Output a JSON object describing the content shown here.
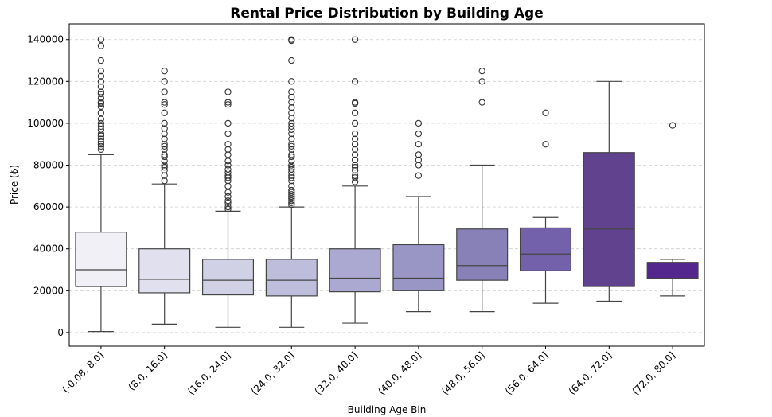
{
  "chart_data": {
    "type": "box",
    "title": "Rental Price Distribution by Building Age",
    "xlabel": "Building Age Bin",
    "ylabel": "Price (₺)",
    "ylim": [
      -6500,
      147500
    ],
    "yticks": [
      0,
      20000,
      40000,
      60000,
      80000,
      100000,
      120000,
      140000
    ],
    "ytick_labels": [
      "0",
      "20000",
      "40000",
      "60000",
      "80000",
      "100000",
      "120000",
      "140000"
    ],
    "grid": "horizontal-dashed",
    "categories": [
      "(-0.08, 8.0]",
      "(8.0, 16.0]",
      "(16.0, 24.0]",
      "(24.0, 32.0]",
      "(32.0, 40.0]",
      "(40.0, 48.0]",
      "(48.0, 56.0]",
      "(56.0, 64.0]",
      "(64.0, 72.0]",
      "(72.0, 80.0]"
    ],
    "colors": [
      "#f1f0f6",
      "#e1e0ee",
      "#d1d1e6",
      "#bebddc",
      "#aba8d1",
      "#9995c5",
      "#8781b8",
      "#7361ab",
      "#61428f",
      "#54278f"
    ],
    "boxes": [
      {
        "whisker_low": 500,
        "q1": 22000,
        "median": 30000,
        "q3": 48000,
        "whisker_high": 85000,
        "outliers": [
          87500,
          89000,
          90000,
          91000,
          92500,
          94000,
          95000,
          97000,
          98500,
          100000,
          102000,
          105000,
          108000,
          109500,
          110000,
          112000,
          114000,
          115000,
          117500,
          120000,
          122500,
          125000,
          130000,
          137000,
          140000
        ]
      },
      {
        "whisker_low": 4000,
        "q1": 19000,
        "median": 25500,
        "q3": 40000,
        "whisker_high": 71000,
        "outliers": [
          72500,
          75000,
          77500,
          79000,
          80000,
          82000,
          84000,
          85000,
          87500,
          89000,
          90000,
          92500,
          95000,
          97500,
          100000,
          105000,
          109000,
          110000,
          115000,
          120000,
          125000
        ]
      },
      {
        "whisker_low": 2500,
        "q1": 18000,
        "median": 25000,
        "q3": 35000,
        "whisker_high": 58000,
        "outliers": [
          59000,
          60000,
          62000,
          63000,
          65000,
          67000,
          70000,
          72500,
          74000,
          75000,
          76500,
          78000,
          80000,
          82000,
          85000,
          87500,
          90000,
          95000,
          100000,
          109000,
          110000,
          115000
        ]
      },
      {
        "whisker_low": 2500,
        "q1": 17500,
        "median": 25000,
        "q3": 35000,
        "whisker_high": 60000,
        "outliers": [
          61000,
          62000,
          63000,
          64000,
          65000,
          66000,
          67000,
          68000,
          70000,
          72500,
          74000,
          75000,
          76500,
          78000,
          79000,
          80000,
          82000,
          84000,
          85000,
          87500,
          89000,
          90000,
          92500,
          95000,
          97000,
          98500,
          100000,
          102500,
          105000,
          107500,
          110000,
          112500,
          115000,
          120000,
          130000,
          139500,
          140000
        ]
      },
      {
        "whisker_low": 4500,
        "q1": 19500,
        "median": 26000,
        "q3": 40000,
        "whisker_high": 70000,
        "outliers": [
          72000,
          74000,
          75000,
          77500,
          79000,
          80000,
          82500,
          85000,
          87500,
          90000,
          92500,
          95000,
          100000,
          105000,
          109500,
          110000,
          120000,
          140000
        ]
      },
      {
        "whisker_low": 10000,
        "q1": 20000,
        "median": 26000,
        "q3": 42000,
        "whisker_high": 65000,
        "outliers": [
          75000,
          80000,
          82500,
          85000,
          90000,
          95000,
          100000
        ]
      },
      {
        "whisker_low": 10000,
        "q1": 25000,
        "median": 32000,
        "q3": 49500,
        "whisker_high": 80000,
        "outliers": [
          110000,
          120000,
          125000
        ]
      },
      {
        "whisker_low": 14000,
        "q1": 29500,
        "median": 37500,
        "q3": 50000,
        "whisker_high": 55000,
        "outliers": [
          90000,
          105000
        ]
      },
      {
        "whisker_low": 15000,
        "q1": 22000,
        "median": 49500,
        "q3": 86000,
        "whisker_high": 120000,
        "outliers": []
      },
      {
        "whisker_low": 17500,
        "q1": 26000,
        "median": 33500,
        "q3": 33500,
        "whisker_high": 35000,
        "outliers": [
          99000
        ]
      }
    ]
  }
}
